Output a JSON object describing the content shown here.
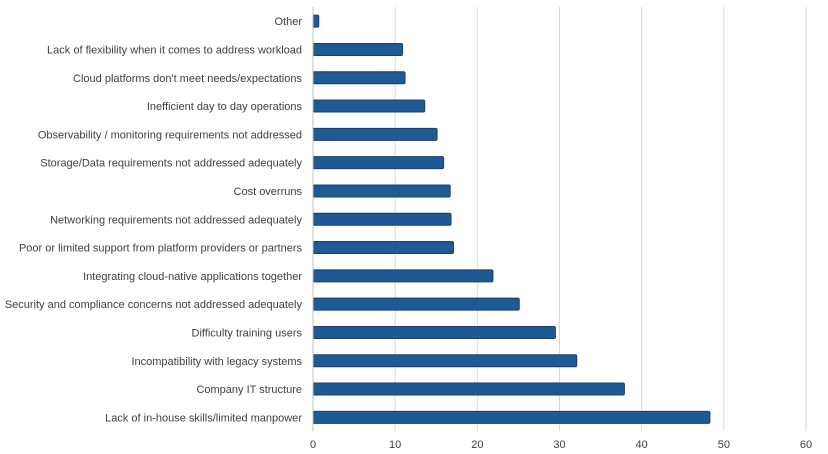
{
  "chart_data": {
    "type": "bar",
    "orientation": "horizontal",
    "title": "",
    "xlabel": "",
    "ylabel": "",
    "xlim": [
      0,
      60
    ],
    "ticks": [
      0,
      10,
      20,
      30,
      40,
      50,
      60
    ],
    "grid": true,
    "legend": "none",
    "bar_color": "#1f5a94",
    "categories": [
      "Other",
      "Lack of flexibility when it comes to address workload",
      "Cloud platforms don't meet needs/expectations",
      "Inefficient day to day operations",
      "Observability / monitoring requirements not addressed",
      "Storage/Data requirements not addressed adequately",
      "Cost overruns",
      "Networking requirements not addressed adequately",
      "Poor or limited support from platform providers or partners",
      "Integrating cloud-native applications together",
      "Security and compliance concerns not addressed adequately",
      "Difficulty training users",
      "Incompatibility with legacy systems",
      "Company IT structure",
      "Lack of in-house skills/limited manpower"
    ],
    "values": [
      0.7,
      10.9,
      11.2,
      13.6,
      15.1,
      15.9,
      16.7,
      16.8,
      17.1,
      21.9,
      25.1,
      29.5,
      32.1,
      37.9,
      48.3
    ]
  }
}
